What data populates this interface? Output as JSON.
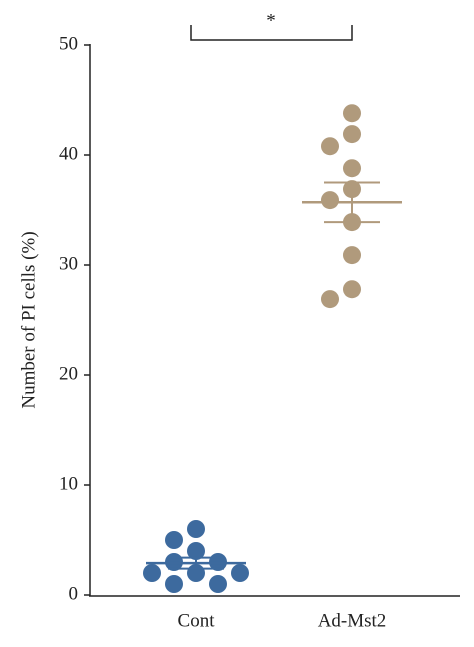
{
  "chart_data": {
    "type": "dot",
    "ylabel": "Number of PI cells (%)",
    "categories": [
      "Cont",
      "Ad-Mst2"
    ],
    "groups": [
      {
        "values": [
          6,
          5,
          4,
          3,
          3,
          2,
          2,
          2,
          1,
          1
        ],
        "color": "#3d6a9e",
        "mean": 2.9,
        "sem": 0.5
      },
      {
        "values": [
          43.8,
          41.9,
          40.8,
          38.8,
          36.9,
          35.9,
          33.9,
          30.9,
          27.8,
          26.9
        ],
        "color": "#b09a7c",
        "mean": 35.7,
        "sem": 1.8
      }
    ],
    "ylim": [
      0,
      50
    ],
    "yticks": [
      0,
      10,
      20,
      30,
      40,
      50
    ],
    "annotation": "*"
  }
}
